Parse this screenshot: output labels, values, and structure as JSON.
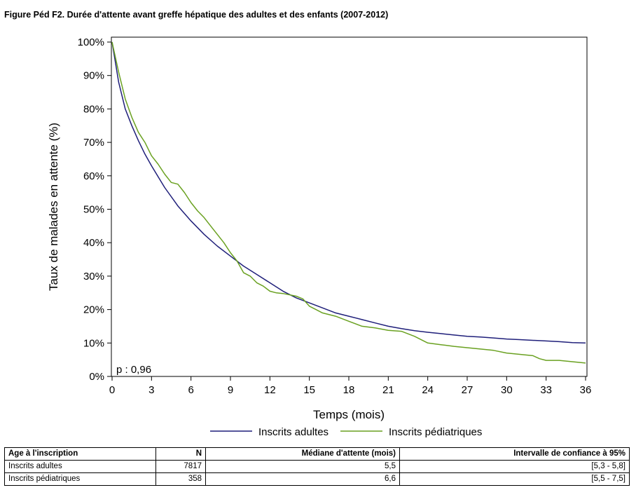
{
  "title": "Figure Péd F2. Durée d'attente avant greffe hépatique des adultes et des enfants (2007-2012)",
  "chart_data": {
    "type": "line",
    "xlabel": "Temps (mois)",
    "ylabel": "Taux de malades en attente (%)",
    "xlim": [
      0,
      36
    ],
    "ylim": [
      0,
      100
    ],
    "xticks": [
      0,
      3,
      6,
      9,
      12,
      15,
      18,
      21,
      24,
      27,
      30,
      33,
      36
    ],
    "yticks": [
      "0%",
      "10%",
      "20%",
      "30%",
      "40%",
      "50%",
      "60%",
      "70%",
      "80%",
      "90%",
      "100%"
    ],
    "annotation": "p : 0,96",
    "legend_position": "bottom",
    "series": [
      {
        "name": "Inscrits adultes",
        "color": "#1f1f7a",
        "x": [
          0,
          0.5,
          1,
          1.5,
          2,
          2.5,
          3,
          4,
          5,
          6,
          7,
          8,
          9,
          10,
          11,
          12,
          13,
          14,
          15,
          16,
          17,
          18,
          19,
          20,
          21,
          22,
          23,
          24,
          25,
          26,
          27,
          28,
          29,
          30,
          31,
          32,
          33,
          34,
          35,
          36
        ],
        "y": [
          100,
          88,
          80,
          75,
          70.5,
          66.5,
          63,
          56.5,
          51,
          46.5,
          42.5,
          39,
          36,
          33,
          30.5,
          28,
          25.5,
          23.5,
          22,
          20.5,
          19,
          18,
          17,
          16,
          15,
          14.3,
          13.7,
          13.2,
          12.8,
          12.4,
          12,
          11.8,
          11.5,
          11.2,
          11,
          10.8,
          10.6,
          10.4,
          10.1,
          10
        ]
      },
      {
        "name": "Inscrits pédiatriques",
        "color": "#6aa121",
        "x": [
          0,
          0.5,
          1,
          1.5,
          2,
          2.5,
          3,
          3.5,
          4,
          4.5,
          5,
          5.5,
          6,
          6.5,
          7,
          7.5,
          8,
          8.5,
          9,
          9.5,
          10,
          10.5,
          11,
          11.5,
          12,
          12.5,
          13,
          14,
          14.5,
          15,
          15.5,
          16,
          17,
          18,
          19,
          20,
          21,
          22,
          23,
          24,
          25,
          26,
          27,
          28,
          29,
          30,
          31,
          32,
          32.5,
          33,
          34,
          35,
          36
        ],
        "y": [
          100,
          91,
          83,
          77.5,
          73,
          70,
          66,
          63.5,
          60.5,
          58,
          57.5,
          55,
          52,
          49.5,
          47.5,
          45,
          42.5,
          40,
          37,
          34.5,
          31,
          30,
          28,
          27,
          25.5,
          25,
          24.8,
          24,
          23.2,
          21,
          20,
          19,
          18,
          16.5,
          15,
          14.5,
          13.8,
          13.5,
          12,
          10,
          9.5,
          9,
          8.6,
          8.2,
          7.8,
          7,
          6.6,
          6.2,
          5.3,
          4.8,
          4.8,
          4.4,
          4
        ]
      }
    ]
  },
  "table": {
    "headers": [
      "Age à l'inscription",
      "N",
      "Médiane d'attente (mois)",
      "Intervalle de confiance à 95%"
    ],
    "rows": [
      [
        "Inscrits adultes",
        "7817",
        "5,5",
        "[5,3 - 5,8]"
      ],
      [
        "Inscrits pédiatriques",
        "358",
        "6,6",
        "[5,5 - 7,5]"
      ]
    ]
  }
}
